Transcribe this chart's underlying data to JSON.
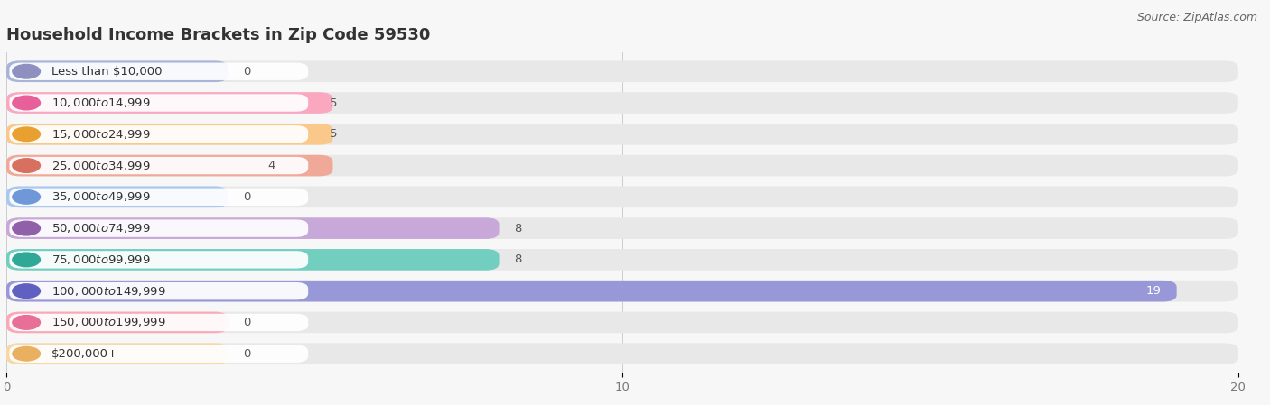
{
  "title": "Household Income Brackets in Zip Code 59530",
  "source": "Source: ZipAtlas.com",
  "categories": [
    "Less than $10,000",
    "$10,000 to $14,999",
    "$15,000 to $24,999",
    "$25,000 to $34,999",
    "$35,000 to $49,999",
    "$50,000 to $74,999",
    "$75,000 to $99,999",
    "$100,000 to $149,999",
    "$150,000 to $199,999",
    "$200,000+"
  ],
  "values": [
    0,
    5,
    5,
    4,
    0,
    8,
    8,
    19,
    0,
    0
  ],
  "bar_colors": [
    "#aab4d8",
    "#f9a8c0",
    "#f9c88a",
    "#f0a898",
    "#a8c8f0",
    "#c8a8d8",
    "#72cfc0",
    "#9898d8",
    "#f9a8b8",
    "#f9d8a8"
  ],
  "circle_colors": [
    "#9090c0",
    "#e8609a",
    "#e8a030",
    "#d87060",
    "#7098d8",
    "#9060a8",
    "#30a898",
    "#6060c0",
    "#e87098",
    "#e8b060"
  ],
  "background_color": "#f7f7f7",
  "bar_bg_color": "#e8e8e8",
  "label_box_color": "#ffffff",
  "xlim": [
    0,
    20
  ],
  "xticks": [
    0,
    10,
    20
  ],
  "title_fontsize": 13,
  "label_fontsize": 9.5,
  "value_fontsize": 9.5,
  "source_fontsize": 9
}
